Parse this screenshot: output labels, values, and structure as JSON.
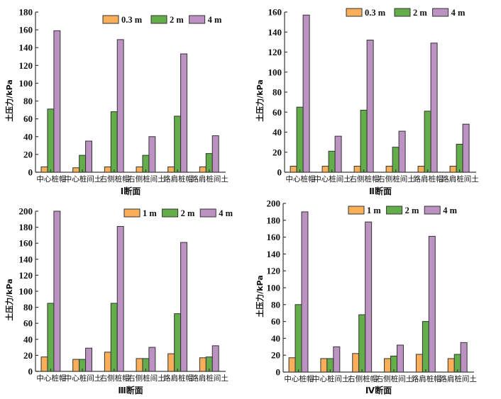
{
  "colors": {
    "series_0": "#F9AE5A",
    "series_1": "#63AE4A",
    "series_2": "#BB92C2",
    "axis": "#3a3a3a"
  },
  "chart_data": [
    {
      "type": "bar",
      "title": "Ⅰ断面",
      "xlabel": "",
      "ylabel": "土压力/kPa",
      "ylim": [
        0,
        180
      ],
      "yticks": [
        0,
        20,
        40,
        60,
        80,
        100,
        120,
        140,
        160,
        180
      ],
      "categories": [
        "中心桩帽",
        "中心桩间土",
        "右侧桩帽",
        "右侧桩间土",
        "路肩桩帽",
        "路肩桩间土"
      ],
      "legend_position": "top-right",
      "series": [
        {
          "name": "0.3 m",
          "values": [
            6,
            5,
            6,
            6,
            6,
            6
          ]
        },
        {
          "name": "2 m",
          "values": [
            71,
            19,
            68,
            19,
            63,
            21
          ]
        },
        {
          "name": "4 m",
          "values": [
            159,
            35,
            149,
            40,
            133,
            41
          ]
        }
      ]
    },
    {
      "type": "bar",
      "title": "Ⅱ断面",
      "xlabel": "",
      "ylabel": "土压力/kPa",
      "ylim": [
        0,
        160
      ],
      "yticks": [
        0,
        20,
        40,
        60,
        80,
        100,
        120,
        140,
        160
      ],
      "categories": [
        "中心桩帽",
        "中心桩间土",
        "右侧桩帽",
        "右侧桩间土",
        "路肩桩帽",
        "路肩桩间土"
      ],
      "legend_position": "top-right",
      "series": [
        {
          "name": "0.3 m",
          "values": [
            6,
            6,
            6,
            6,
            6,
            6
          ]
        },
        {
          "name": "2 m",
          "values": [
            65,
            21,
            62,
            25,
            61,
            28
          ]
        },
        {
          "name": "4 m",
          "values": [
            157,
            36,
            132,
            41,
            129,
            48
          ]
        }
      ]
    },
    {
      "type": "bar",
      "title": "Ⅲ断面",
      "xlabel": "",
      "ylabel": "土压力/kPa",
      "ylim": [
        0,
        200
      ],
      "yticks": [
        0,
        20,
        40,
        60,
        80,
        100,
        120,
        140,
        160,
        180,
        200
      ],
      "categories": [
        "中心桩帽",
        "中心桩间土",
        "右侧桩帽",
        "右侧桩间土",
        "路肩桩帽",
        "路肩桩间土"
      ],
      "legend_position": "top-right",
      "series": [
        {
          "name": "1 m",
          "values": [
            18,
            15,
            24,
            16,
            22,
            17
          ]
        },
        {
          "name": "2 m",
          "values": [
            85,
            15,
            85,
            16,
            72,
            18
          ]
        },
        {
          "name": "4 m",
          "values": [
            200,
            29,
            181,
            30,
            161,
            32
          ]
        }
      ]
    },
    {
      "type": "bar",
      "title": "Ⅳ断面",
      "xlabel": "",
      "ylabel": "土压力/kPa",
      "ylim": [
        0,
        200
      ],
      "yticks": [
        0,
        20,
        40,
        60,
        80,
        100,
        120,
        140,
        160,
        180,
        200
      ],
      "categories": [
        "中心桩帽",
        "中心桩间土",
        "右侧桩帽",
        "右侧桩间土",
        "路肩桩帽",
        "路肩桩间土"
      ],
      "legend_position": "top-right",
      "series": [
        {
          "name": "1 m",
          "values": [
            17,
            16,
            22,
            16,
            21,
            16
          ]
        },
        {
          "name": "2 m",
          "values": [
            80,
            16,
            68,
            19,
            60,
            21
          ]
        },
        {
          "name": "4 m",
          "values": [
            190,
            30,
            178,
            32,
            161,
            35
          ]
        }
      ]
    }
  ]
}
